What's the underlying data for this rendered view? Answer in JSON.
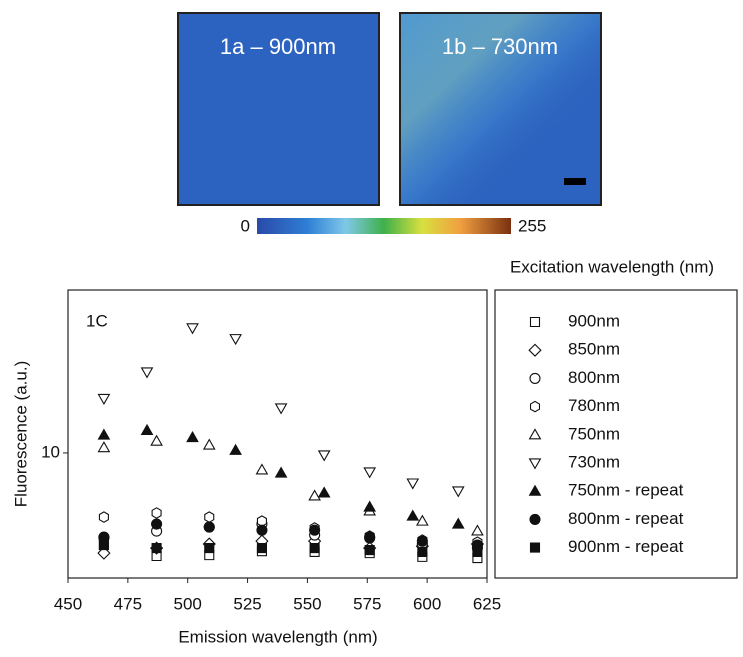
{
  "panels": [
    {
      "label": "1a – 900nm"
    },
    {
      "label": "1b – 730nm"
    }
  ],
  "colorbar": {
    "ticks": [
      0,
      255
    ]
  },
  "chart_data": {
    "type": "scatter",
    "panel_label": "1C",
    "x_label": "Emission wavelength (nm)",
    "y_label": "Fluorescence (a.u.)",
    "legend_title": "Excitation wavelength (nm)",
    "legend": "right",
    "grid": false,
    "ylog": true,
    "xlim": [
      450,
      625
    ],
    "xticks": [
      450,
      475,
      500,
      525,
      550,
      575,
      600,
      625
    ],
    "ylim": [
      4,
      33
    ],
    "yticks": [
      10
    ],
    "series": [
      {
        "name": "900nm",
        "marker": "square",
        "filled": false,
        "color": "#111111",
        "x": [
          465,
          487,
          509,
          531,
          553,
          576,
          598,
          621
        ],
        "values": [
          5.09,
          4.7,
          4.73,
          4.87,
          4.84,
          4.8,
          4.67,
          4.63
        ]
      },
      {
        "name": "850nm",
        "marker": "diamond",
        "filled": false,
        "color": "#111111",
        "x": [
          465,
          487,
          509,
          531,
          553,
          576,
          598,
          621
        ],
        "values": [
          4.8,
          4.98,
          5.13,
          5.24,
          5.24,
          4.98,
          5.05,
          5.13
        ]
      },
      {
        "name": "800nm",
        "marker": "circle",
        "filled": false,
        "color": "#111111",
        "x": [
          465,
          487,
          509,
          531,
          553,
          576,
          598,
          621
        ],
        "values": [
          5.4,
          5.64,
          5.81,
          5.94,
          5.48,
          5.36,
          5.13,
          4.98
        ]
      },
      {
        "name": "780nm",
        "marker": "hexagon",
        "filled": false,
        "color": "#111111",
        "x": [
          465,
          487,
          509,
          531,
          553,
          576,
          598,
          621
        ],
        "values": [
          6.25,
          6.44,
          6.25,
          6.07,
          5.77,
          5.44,
          5.28,
          5.2
        ]
      },
      {
        "name": "750nm",
        "marker": "triangle-up",
        "filled": false,
        "color": "#111111",
        "x": [
          465,
          487,
          509,
          531,
          553,
          576,
          598,
          621
        ],
        "values": [
          10.4,
          10.9,
          10.6,
          8.83,
          7.3,
          6.54,
          6.07,
          5.65
        ]
      },
      {
        "name": "730nm",
        "marker": "triangle-down",
        "filled": false,
        "color": "#111111",
        "x": [
          465,
          483,
          502,
          520,
          539,
          557,
          576,
          594,
          613
        ],
        "values": [
          14.9,
          18.1,
          25.0,
          23.1,
          13.9,
          9.85,
          8.7,
          8.02,
          7.57
        ]
      },
      {
        "name": "750nm - repeat",
        "marker": "triangle-up",
        "filled": true,
        "color": "#111111",
        "x": [
          465,
          483,
          502,
          520,
          539,
          557,
          576,
          594,
          613
        ],
        "values": [
          11.4,
          11.8,
          11.2,
          10.2,
          8.63,
          7.46,
          6.73,
          6.3,
          5.94
        ]
      },
      {
        "name": "800nm - repeat",
        "marker": "circle",
        "filled": true,
        "color": "#111111",
        "x": [
          465,
          487,
          509,
          531,
          553,
          576,
          598,
          621
        ],
        "values": [
          5.37,
          5.94,
          5.81,
          5.68,
          5.68,
          5.4,
          5.24,
          5.09
        ]
      },
      {
        "name": "900nm - repeat",
        "marker": "square",
        "filled": true,
        "color": "#111111",
        "x": [
          465,
          487,
          509,
          531,
          553,
          576,
          598,
          621
        ],
        "values": [
          5.09,
          4.98,
          4.98,
          4.98,
          4.98,
          4.91,
          4.84,
          4.84
        ]
      }
    ]
  }
}
